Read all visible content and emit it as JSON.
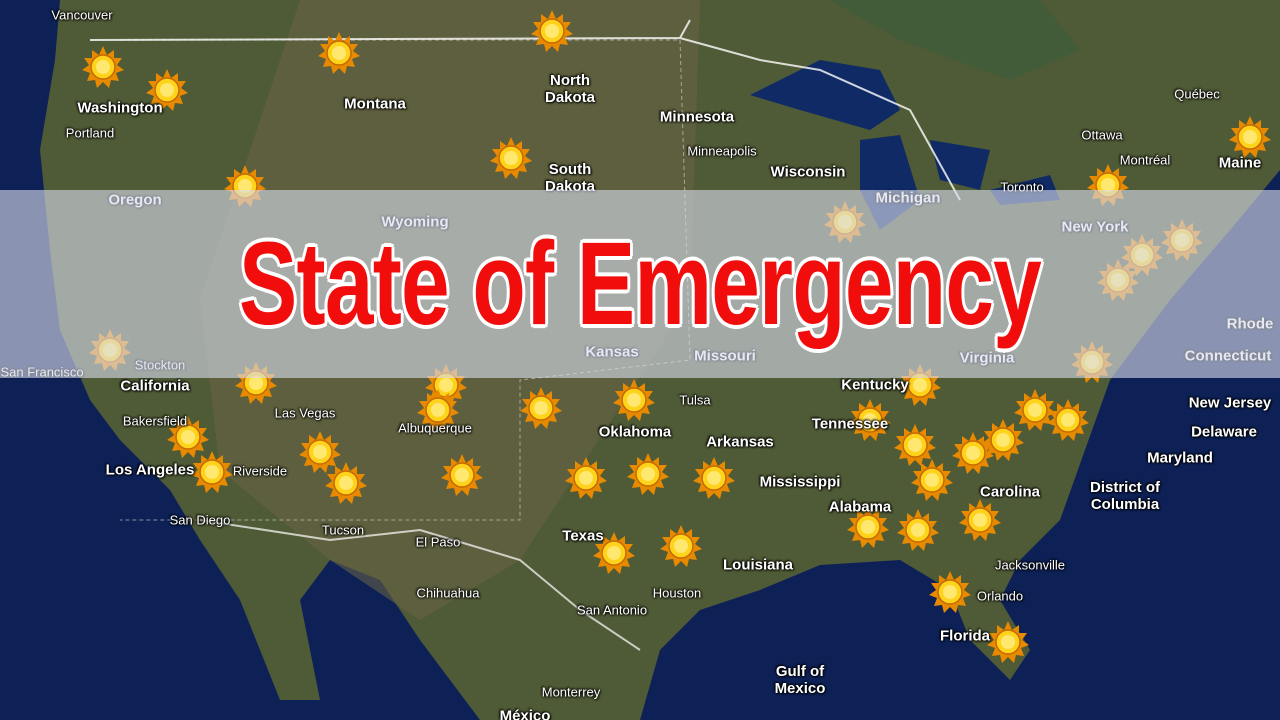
{
  "title": "State of Emergency",
  "labels": [
    "Vancouver",
    "Washington",
    "Portland",
    "Oregon",
    "Montana",
    "North Dakota",
    "South Dakota",
    "Minnesota",
    "Minneapolis",
    "Wisconsin",
    "Michigan",
    "Wyoming",
    "Ottawa",
    "Québec",
    "Montréal",
    "Maine",
    "Toronto",
    "New York",
    "San Francisco",
    "Stockton",
    "California",
    "Kansas",
    "Missouri",
    "Virginia",
    "Rhode",
    "Connecticut",
    "Las Vegas",
    "Bakersfield",
    "Albuquerque",
    "Tulsa",
    "Oklahoma",
    "Arkansas",
    "Tennessee",
    "Kentucky",
    "Los Angeles",
    "Riverside",
    "Mississippi",
    "Alabama",
    "Carolina",
    "New Jersey",
    "Delaware",
    "Maryland",
    "District of Columbia",
    "San Diego",
    "Tucson",
    "El Paso",
    "Texas",
    "Louisiana",
    "Jacksonville",
    "Houston",
    "Chihuahua",
    "San Antonio",
    "Orlando",
    "Florida",
    "Gulf of Mexico",
    "Monterrey",
    "México"
  ]
}
